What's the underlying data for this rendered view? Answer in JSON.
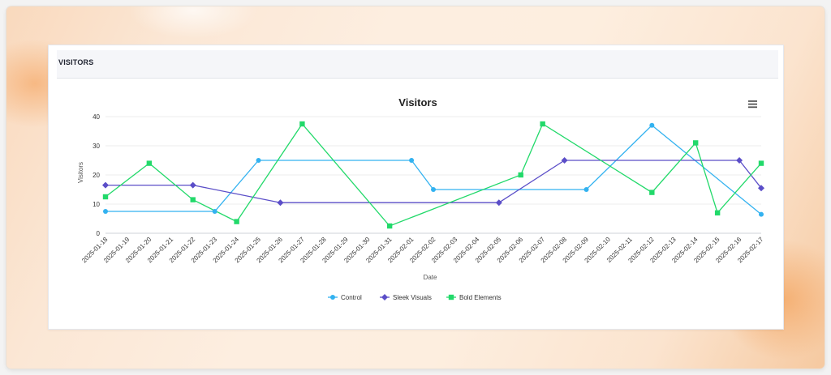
{
  "card": {
    "header_title": "VISITORS"
  },
  "icons": {
    "menu": "hamburger-menu-icon"
  },
  "chart_data": {
    "type": "line",
    "title": "Visitors",
    "xlabel": "Date",
    "ylabel": "Visitors",
    "ylim": [
      0,
      40
    ],
    "yticks": [
      0,
      10,
      20,
      30,
      40
    ],
    "grid": true,
    "legend": "bottom",
    "categories": [
      "2025-01-18",
      "2025-01-19",
      "2025-01-20",
      "2025-01-21",
      "2025-01-22",
      "2025-01-23",
      "2025-01-24",
      "2025-01-25",
      "2025-01-26",
      "2025-01-27",
      "2025-01-28",
      "2025-01-29",
      "2025-01-30",
      "2025-01-31",
      "2025-02-01",
      "2025-02-02",
      "2025-02-03",
      "2025-02-04",
      "2025-02-05",
      "2025-02-06",
      "2025-02-07",
      "2025-02-08",
      "2025-02-09",
      "2025-02-10",
      "2025-02-11",
      "2025-02-12",
      "2025-02-13",
      "2025-02-14",
      "2025-02-15",
      "2025-02-16",
      "2025-02-17"
    ],
    "series": [
      {
        "name": "Control",
        "color": "#33b2f0",
        "marker": "circle",
        "points": [
          {
            "x": "2025-01-18",
            "y": 7.5
          },
          {
            "x": "2025-01-23",
            "y": 7.5
          },
          {
            "x": "2025-01-25",
            "y": 25
          },
          {
            "x": "2025-02-01",
            "y": 25
          },
          {
            "x": "2025-02-02",
            "y": 15
          },
          {
            "x": "2025-02-09",
            "y": 15
          },
          {
            "x": "2025-02-12",
            "y": 37
          },
          {
            "x": "2025-02-17",
            "y": 6.5
          }
        ]
      },
      {
        "name": "Sleek Visuals",
        "color": "#5b4ec8",
        "marker": "diamond",
        "points": [
          {
            "x": "2025-01-18",
            "y": 16.5
          },
          {
            "x": "2025-01-22",
            "y": 16.5
          },
          {
            "x": "2025-01-26",
            "y": 10.5
          },
          {
            "x": "2025-02-05",
            "y": 10.5
          },
          {
            "x": "2025-02-08",
            "y": 25
          },
          {
            "x": "2025-02-16",
            "y": 25
          },
          {
            "x": "2025-02-17",
            "y": 15.5
          }
        ]
      },
      {
        "name": "Bold Elements",
        "color": "#22d96a",
        "marker": "square",
        "points": [
          {
            "x": "2025-01-18",
            "y": 12.5
          },
          {
            "x": "2025-01-20",
            "y": 24
          },
          {
            "x": "2025-01-22",
            "y": 11.5
          },
          {
            "x": "2025-01-24",
            "y": 4
          },
          {
            "x": "2025-01-27",
            "y": 37.5
          },
          {
            "x": "2025-01-31",
            "y": 2.5
          },
          {
            "x": "2025-02-06",
            "y": 20
          },
          {
            "x": "2025-02-07",
            "y": 37.5
          },
          {
            "x": "2025-02-12",
            "y": 14
          },
          {
            "x": "2025-02-14",
            "y": 31
          },
          {
            "x": "2025-02-15",
            "y": 7
          },
          {
            "x": "2025-02-17",
            "y": 24
          }
        ]
      }
    ]
  }
}
